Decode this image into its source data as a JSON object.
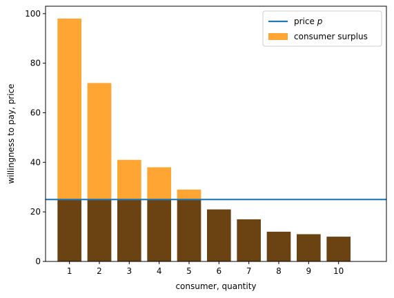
{
  "chart_data": {
    "type": "bar",
    "xlabel": "consumer, quantity",
    "ylabel": "willingness to pay, price",
    "categories": [
      "1",
      "2",
      "3",
      "4",
      "5",
      "6",
      "7",
      "8",
      "9",
      "10"
    ],
    "willingness_to_pay": [
      98,
      72,
      41,
      38,
      29,
      21,
      17,
      12,
      11,
      10
    ],
    "price": 25,
    "ylim": [
      0,
      103
    ],
    "xlim": [
      0.2,
      11.6
    ],
    "yticks": [
      0,
      20,
      40,
      60,
      80,
      100
    ],
    "legend": {
      "placement": "top-right",
      "entries": [
        {
          "label": "price",
          "italic_suffix": "p",
          "kind": "line",
          "color": "#1f77b4"
        },
        {
          "label": "consumer surplus",
          "kind": "patch",
          "color": "#ffa533"
        }
      ]
    },
    "colors": {
      "price_line": "#1f77b4",
      "surplus": "#ffa533",
      "below_price": "#6b4313"
    },
    "grid": false
  }
}
